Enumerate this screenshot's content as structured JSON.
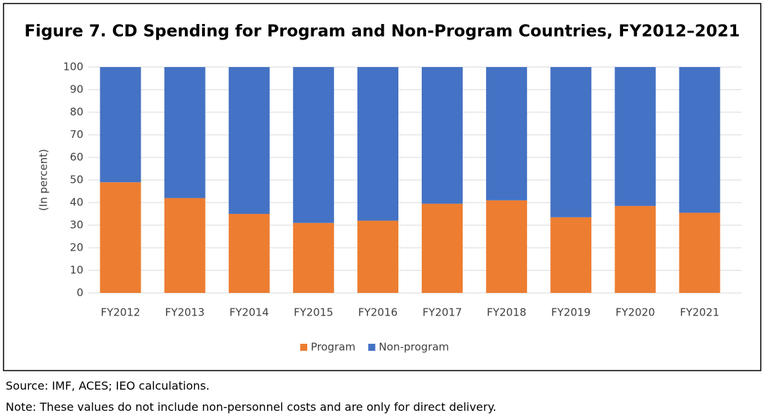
{
  "chart_data": {
    "type": "stacked_bar",
    "title": "Figure 7. CD Spending for Program and Non-Program Countries, FY2012–2021",
    "y_label": "(In percent)",
    "categories": [
      "FY2012",
      "FY2013",
      "FY2014",
      "FY2015",
      "FY2016",
      "FY2017",
      "FY2018",
      "FY2019",
      "FY2020",
      "FY2021"
    ],
    "series": [
      {
        "name": "Program",
        "color": "#ed7d31",
        "values": [
          49,
          42,
          35,
          31,
          32,
          39.5,
          41,
          33.5,
          38.5,
          35.5
        ]
      },
      {
        "name": "Non-program",
        "color": "#4472c4",
        "values": [
          51,
          58,
          65,
          69,
          68,
          60.5,
          59,
          66.5,
          61.5,
          64.5
        ]
      }
    ],
    "ylim": [
      0,
      100
    ],
    "yticks": [
      0,
      10,
      20,
      30,
      40,
      50,
      60,
      70,
      80,
      90,
      100
    ],
    "grid": true,
    "legend": "bottom"
  },
  "source": "Source: IMF, ACES;  IEO calculations.",
  "note": "Note: These values do not include non-personnel costs and are only for direct delivery."
}
